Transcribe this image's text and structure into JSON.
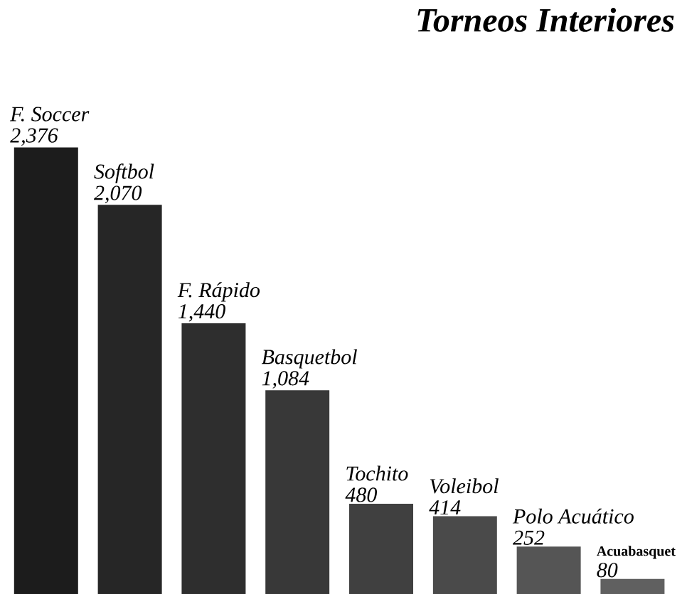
{
  "chart_data": {
    "type": "bar",
    "title": "Torneos Interiores",
    "categories": [
      "F. Soccer",
      "Softbol",
      "F. Rápido",
      "Basquetbol",
      "Tochito",
      "Voleibol",
      "Polo Acuático",
      "Acuabasquet"
    ],
    "values": [
      2376,
      2070,
      1440,
      1084,
      480,
      414,
      252,
      80
    ],
    "value_labels": [
      "2,376",
      "2,070",
      "1,440",
      "1,084",
      "480",
      "414",
      "252",
      "80"
    ],
    "colors": [
      "#1c1c1c",
      "#262626",
      "#2e2e2e",
      "#383838",
      "#404040",
      "#4a4a4a",
      "#555555",
      "#606060"
    ]
  }
}
